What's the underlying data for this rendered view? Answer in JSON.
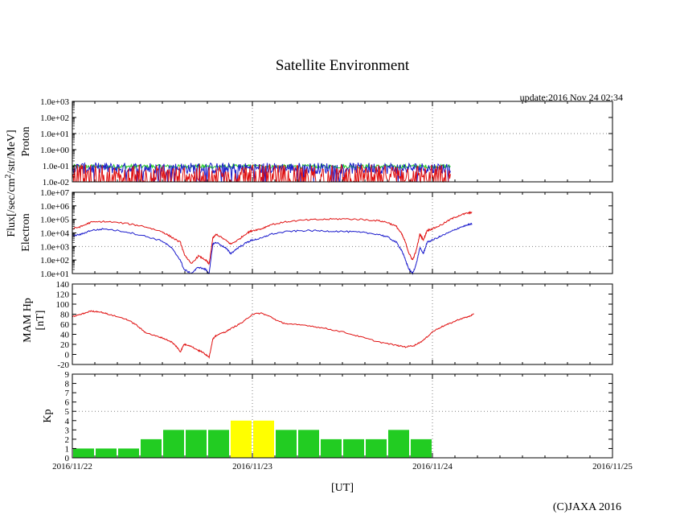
{
  "title": "Satellite Environment",
  "update_text": "update:2016 Nov 24 02:34",
  "shared_ylabel": "Flux[/sec/cm2/str/MeV]",
  "xlabel": "[UT]",
  "copyright": "(C)JAXA 2016",
  "x_ticks": [
    "2016/11/22",
    "2016/11/23",
    "2016/11/24",
    "2016/11/25"
  ],
  "colors": {
    "red": "#e01010",
    "blue": "#1a1acc",
    "green": "#22cc22",
    "yellow": "#ffff00",
    "grid": "#808080"
  },
  "chart_data": [
    {
      "id": "proton",
      "type": "line",
      "ylabel": "Proton",
      "y_scale": "log",
      "ylim": [
        0.01,
        1000
      ],
      "ytick_labels": [
        "1.0e-02",
        "1.0e-01",
        "1.0e+00",
        "1.0e+01",
        "1.0e+02",
        "1.0e+03"
      ],
      "x_unit": "days since 2016/11/22 00:00 UT",
      "xlim": [
        0,
        3
      ],
      "series": [
        {
          "color": "green",
          "level": 0.09,
          "noise": 0.12,
          "x_end": 2.1
        },
        {
          "color": "blue",
          "level": 0.07,
          "noise": 0.35,
          "x_end": 2.1
        },
        {
          "color": "red",
          "level": 0.03,
          "noise": 0.6,
          "x_end": 2.1
        }
      ]
    },
    {
      "id": "electron",
      "type": "line",
      "ylabel": "Electron",
      "y_scale": "log",
      "ylim": [
        10,
        10000000
      ],
      "ytick_labels": [
        "1.0e+01",
        "1.0e+02",
        "1.0e+03",
        "1.0e+04",
        "1.0e+05",
        "1.0e+06",
        "1.0e+07"
      ],
      "xlim": [
        0,
        3
      ],
      "series": [
        {
          "color": "red",
          "points": [
            [
              0,
              20000
            ],
            [
              0.05,
              30000
            ],
            [
              0.1,
              60000
            ],
            [
              0.18,
              70000
            ],
            [
              0.3,
              50000
            ],
            [
              0.4,
              30000
            ],
            [
              0.5,
              12000
            ],
            [
              0.55,
              5000
            ],
            [
              0.6,
              2000
            ],
            [
              0.62,
              300
            ],
            [
              0.66,
              50
            ],
            [
              0.7,
              200
            ],
            [
              0.74,
              100
            ],
            [
              0.76,
              50
            ],
            [
              0.78,
              4000
            ],
            [
              0.8,
              8000
            ],
            [
              0.85,
              3000
            ],
            [
              0.88,
              1500
            ],
            [
              0.92,
              3000
            ],
            [
              0.97,
              10000
            ],
            [
              1.0,
              15000
            ],
            [
              1.05,
              20000
            ],
            [
              1.1,
              40000
            ],
            [
              1.2,
              70000
            ],
            [
              1.3,
              90000
            ],
            [
              1.4,
              100000
            ],
            [
              1.5,
              110000
            ],
            [
              1.6,
              100000
            ],
            [
              1.7,
              80000
            ],
            [
              1.75,
              60000
            ],
            [
              1.8,
              30000
            ],
            [
              1.83,
              8000
            ],
            [
              1.85,
              2000
            ],
            [
              1.87,
              300
            ],
            [
              1.89,
              100
            ],
            [
              1.91,
              500
            ],
            [
              1.93,
              8000
            ],
            [
              1.95,
              3000
            ],
            [
              1.97,
              15000
            ],
            [
              2.0,
              20000
            ],
            [
              2.05,
              40000
            ],
            [
              2.1,
              100000
            ],
            [
              2.15,
              200000
            ],
            [
              2.2,
              300000
            ],
            [
              2.22,
              330000
            ]
          ]
        },
        {
          "color": "blue",
          "points": [
            [
              0,
              6000
            ],
            [
              0.05,
              8000
            ],
            [
              0.1,
              15000
            ],
            [
              0.18,
              20000
            ],
            [
              0.3,
              12000
            ],
            [
              0.4,
              6000
            ],
            [
              0.5,
              2500
            ],
            [
              0.55,
              800
            ],
            [
              0.6,
              100
            ],
            [
              0.62,
              20
            ],
            [
              0.66,
              10
            ],
            [
              0.7,
              30
            ],
            [
              0.74,
              20
            ],
            [
              0.76,
              10
            ],
            [
              0.78,
              1500
            ],
            [
              0.8,
              2000
            ],
            [
              0.85,
              800
            ],
            [
              0.88,
              300
            ],
            [
              0.92,
              800
            ],
            [
              0.97,
              2000
            ],
            [
              1.0,
              3000
            ],
            [
              1.05,
              4000
            ],
            [
              1.1,
              8000
            ],
            [
              1.2,
              13000
            ],
            [
              1.3,
              15000
            ],
            [
              1.4,
              14000
            ],
            [
              1.5,
              13000
            ],
            [
              1.6,
              11000
            ],
            [
              1.7,
              8000
            ],
            [
              1.75,
              5000
            ],
            [
              1.8,
              2000
            ],
            [
              1.83,
              500
            ],
            [
              1.85,
              100
            ],
            [
              1.87,
              20
            ],
            [
              1.89,
              10
            ],
            [
              1.91,
              50
            ],
            [
              1.93,
              800
            ],
            [
              1.95,
              300
            ],
            [
              1.97,
              2000
            ],
            [
              2.0,
              3000
            ],
            [
              2.05,
              6000
            ],
            [
              2.1,
              12000
            ],
            [
              2.15,
              25000
            ],
            [
              2.2,
              40000
            ],
            [
              2.22,
              45000
            ]
          ]
        }
      ]
    },
    {
      "id": "hp",
      "type": "line",
      "ylabel": "MAM Hp [nT]",
      "ylim": [
        -20,
        140
      ],
      "yticks": [
        -20,
        0,
        20,
        40,
        60,
        80,
        100,
        120,
        140
      ],
      "xlim": [
        0,
        3
      ],
      "series": [
        {
          "color": "red",
          "points": [
            [
              0,
              75
            ],
            [
              0.05,
              80
            ],
            [
              0.1,
              86
            ],
            [
              0.15,
              85
            ],
            [
              0.2,
              80
            ],
            [
              0.3,
              70
            ],
            [
              0.35,
              60
            ],
            [
              0.4,
              45
            ],
            [
              0.45,
              38
            ],
            [
              0.5,
              33
            ],
            [
              0.55,
              25
            ],
            [
              0.58,
              15
            ],
            [
              0.6,
              5
            ],
            [
              0.62,
              20
            ],
            [
              0.65,
              18
            ],
            [
              0.7,
              8
            ],
            [
              0.72,
              5
            ],
            [
              0.74,
              0
            ],
            [
              0.76,
              -5
            ],
            [
              0.78,
              30
            ],
            [
              0.8,
              38
            ],
            [
              0.85,
              45
            ],
            [
              0.9,
              55
            ],
            [
              0.95,
              65
            ],
            [
              1.0,
              80
            ],
            [
              1.05,
              82
            ],
            [
              1.1,
              75
            ],
            [
              1.15,
              65
            ],
            [
              1.2,
              60
            ],
            [
              1.3,
              58
            ],
            [
              1.4,
              52
            ],
            [
              1.5,
              45
            ],
            [
              1.6,
              35
            ],
            [
              1.7,
              25
            ],
            [
              1.8,
              18
            ],
            [
              1.85,
              15
            ],
            [
              1.9,
              18
            ],
            [
              1.95,
              28
            ],
            [
              2.0,
              45
            ],
            [
              2.05,
              55
            ],
            [
              2.1,
              62
            ],
            [
              2.15,
              70
            ],
            [
              2.2,
              75
            ],
            [
              2.23,
              80
            ]
          ]
        }
      ]
    },
    {
      "id": "kp",
      "type": "bar",
      "ylabel": "Kp",
      "ylim": [
        0,
        9
      ],
      "yticks": [
        0,
        1,
        2,
        3,
        4,
        5,
        6,
        7,
        8,
        9
      ],
      "x_unit": "3-hour intervals from 2016/11/22 00:00 UT",
      "values": [
        1,
        1,
        1,
        2,
        3,
        3,
        3,
        4,
        4,
        3,
        3,
        2,
        2,
        2,
        3,
        2
      ],
      "bar_colors": [
        "green",
        "green",
        "green",
        "green",
        "green",
        "green",
        "green",
        "yellow",
        "yellow",
        "green",
        "green",
        "green",
        "green",
        "green",
        "green",
        "green"
      ]
    }
  ]
}
